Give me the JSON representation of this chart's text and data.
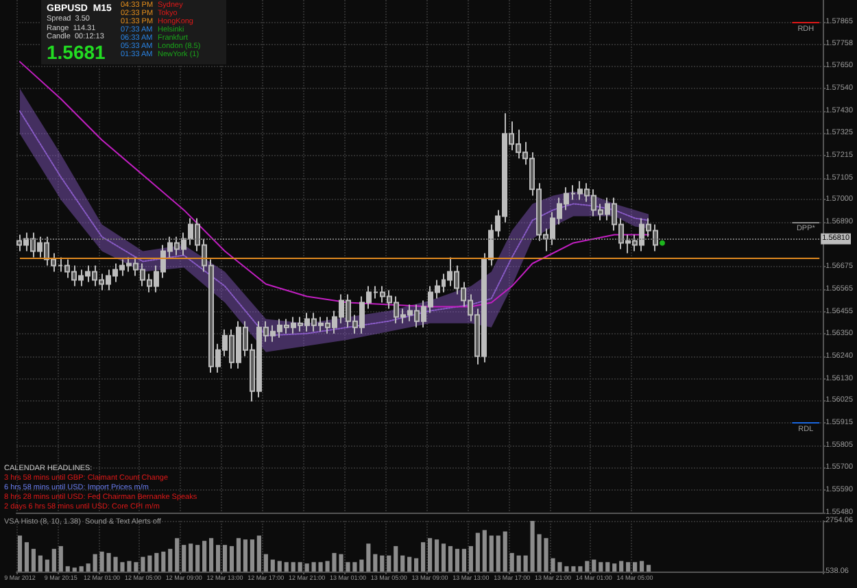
{
  "chart_data": [
    {
      "type": "candlestick",
      "title": "GBPUSD  M15",
      "annotations": [
        "Spread  3.50",
        "Range  114.31",
        "Candle  00:12:13",
        "1.5681",
        "04:33 PM",
        "02:33 PM",
        "01:33 PM",
        "07:33 AM",
        "06:33 AM",
        "05:33 AM",
        "01:33 AM",
        "Sydney",
        "Tokyo",
        "HongKong",
        "Helsinki",
        "Frankfurt",
        "London (8.5)",
        "NewYork (1)",
        "CALENDAR HEADLINES:",
        "3 hrs 58 mins until GBP: Claimant Count Change",
        "6 hrs 58 mins until USD: Import Prices m/m",
        "8 hrs 28 mins until USD: Fed Chairman Bernanke Speaks",
        "2 days 6 hrs 58 mins until USD: Core CPI m/m"
      ],
      "categories": [
        null,
        null,
        null,
        null,
        null,
        null,
        null,
        null,
        null,
        null,
        null,
        null,
        null,
        null,
        null,
        null,
        null,
        null,
        null,
        null,
        null,
        null,
        null,
        null,
        null,
        null,
        null,
        null,
        null,
        null,
        null,
        null,
        null,
        null,
        null,
        null,
        null,
        null,
        null,
        null,
        null,
        null,
        null,
        null,
        null,
        null,
        null,
        null,
        null,
        null,
        null,
        null,
        null,
        null,
        null,
        null,
        null,
        null,
        null,
        null,
        null,
        null,
        null,
        null,
        null,
        null,
        null,
        null,
        null,
        null,
        null,
        null,
        null,
        null,
        null,
        null,
        null,
        null,
        null,
        null,
        null,
        null,
        null,
        null,
        null,
        null,
        null,
        null,
        null,
        null,
        null,
        null,
        null,
        null,
        null,
        null,
        null,
        null,
        null,
        null,
        null,
        null,
        null,
        null,
        null,
        null,
        null,
        null,
        null,
        null,
        null,
        null,
        null,
        null,
        null,
        null,
        null,
        null
      ],
      "color": "#bdbdbd",
      "ohlc": [
        [
          1.568,
          1.5683,
          1.5675,
          1.5678
        ],
        [
          1.5678,
          1.5684,
          1.5675,
          1.5681
        ],
        [
          1.5681,
          1.5684,
          1.5672,
          1.5675
        ],
        [
          1.5675,
          1.5682,
          1.5672,
          1.5679
        ],
        [
          1.5679,
          1.5682,
          1.5668,
          1.5671
        ],
        [
          1.5671,
          1.5674,
          1.5665,
          1.5668
        ],
        [
          1.5668,
          1.5672,
          1.5665,
          1.5668
        ],
        [
          1.5668,
          1.5671,
          1.5662,
          1.5665
        ],
        [
          1.5665,
          1.5668,
          1.5658,
          1.5661
        ],
        [
          1.5661,
          1.5666,
          1.5658,
          1.5663
        ],
        [
          1.5663,
          1.5668,
          1.566,
          1.5665
        ],
        [
          1.5665,
          1.5668,
          1.5658,
          1.5661
        ],
        [
          1.5661,
          1.5664,
          1.5656,
          1.5659
        ],
        [
          1.5659,
          1.5666,
          1.5656,
          1.5663
        ],
        [
          1.5663,
          1.5669,
          1.566,
          1.5666
        ],
        [
          1.5666,
          1.5671,
          1.5663,
          1.5668
        ],
        [
          1.5668,
          1.5672,
          1.5665,
          1.5669
        ],
        [
          1.5669,
          1.5672,
          1.5663,
          1.5666
        ],
        [
          1.5666,
          1.5669,
          1.5658,
          1.5661
        ],
        [
          1.5661,
          1.5664,
          1.5655,
          1.5658
        ],
        [
          1.5658,
          1.5668,
          1.5655,
          1.5665
        ],
        [
          1.5665,
          1.5678,
          1.5662,
          1.5675
        ],
        [
          1.5675,
          1.5682,
          1.5672,
          1.5679
        ],
        [
          1.5679,
          1.5682,
          1.5673,
          1.5676
        ],
        [
          1.5676,
          1.5684,
          1.5673,
          1.5681
        ],
        [
          1.5681,
          1.5691,
          1.5678,
          1.5688
        ],
        [
          1.5688,
          1.5691,
          1.5675,
          1.5678
        ],
        [
          1.5678,
          1.5681,
          1.5665,
          1.5668
        ],
        [
          1.5668,
          1.5671,
          1.5616,
          1.5619
        ],
        [
          1.5619,
          1.563,
          1.5616,
          1.5627
        ],
        [
          1.5627,
          1.5637,
          1.5624,
          1.5634
        ],
        [
          1.5634,
          1.5637,
          1.5618,
          1.5621
        ],
        [
          1.5621,
          1.5641,
          1.5618,
          1.5638
        ],
        [
          1.5638,
          1.5641,
          1.5624,
          1.5627
        ],
        [
          1.5627,
          1.563,
          1.5602,
          1.5607
        ],
        [
          1.5607,
          1.5641,
          1.5604,
          1.5638
        ],
        [
          1.5638,
          1.5641,
          1.5631,
          1.5634
        ],
        [
          1.5634,
          1.5639,
          1.5631,
          1.5636
        ],
        [
          1.5636,
          1.5642,
          1.5633,
          1.5639
        ],
        [
          1.5639,
          1.5642,
          1.5635,
          1.5638
        ],
        [
          1.5638,
          1.5643,
          1.5635,
          1.564
        ],
        [
          1.564,
          1.5643,
          1.5636,
          1.5639
        ],
        [
          1.5639,
          1.5645,
          1.5636,
          1.5642
        ],
        [
          1.5642,
          1.5645,
          1.5636,
          1.5639
        ],
        [
          1.5639,
          1.5643,
          1.5636,
          1.564
        ],
        [
          1.564,
          1.5643,
          1.5635,
          1.5638
        ],
        [
          1.5638,
          1.5646,
          1.5635,
          1.5643
        ],
        [
          1.5643,
          1.5654,
          1.564,
          1.5651
        ],
        [
          1.5651,
          1.5654,
          1.5638,
          1.5641
        ],
        [
          1.5641,
          1.5644,
          1.5635,
          1.5638
        ],
        [
          1.5638,
          1.5653,
          1.5635,
          1.565
        ],
        [
          1.565,
          1.5658,
          1.5647,
          1.5655
        ],
        [
          1.5655,
          1.5658,
          1.5652,
          1.5655
        ],
        [
          1.5655,
          1.5658,
          1.565,
          1.5653
        ],
        [
          1.5653,
          1.5656,
          1.5647,
          1.565
        ],
        [
          1.565,
          1.5653,
          1.564,
          1.5643
        ],
        [
          1.5643,
          1.5647,
          1.564,
          1.5644
        ],
        [
          1.5644,
          1.5649,
          1.5641,
          1.5646
        ],
        [
          1.5646,
          1.5649,
          1.5638,
          1.5641
        ],
        [
          1.5641,
          1.5651,
          1.5638,
          1.5648
        ],
        [
          1.5648,
          1.5658,
          1.5645,
          1.5655
        ],
        [
          1.5655,
          1.5661,
          1.5652,
          1.5658
        ],
        [
          1.5658,
          1.5664,
          1.5655,
          1.5661
        ],
        [
          1.5661,
          1.5672,
          1.5658,
          1.5665
        ],
        [
          1.5665,
          1.5668,
          1.5654,
          1.5657
        ],
        [
          1.5657,
          1.566,
          1.5648,
          1.5651
        ],
        [
          1.5651,
          1.5654,
          1.5641,
          1.5644
        ],
        [
          1.5644,
          1.5647,
          1.562,
          1.5624
        ],
        [
          1.5624,
          1.5674,
          1.5621,
          1.5671
        ],
        [
          1.5671,
          1.5688,
          1.5668,
          1.5685
        ],
        [
          1.5685,
          1.5695,
          1.5682,
          1.5692
        ],
        [
          1.5692,
          1.5742,
          1.5689,
          1.5732
        ],
        [
          1.5732,
          1.5738,
          1.5724,
          1.5727
        ],
        [
          1.5727,
          1.5734,
          1.572,
          1.5723
        ],
        [
          1.5723,
          1.5728,
          1.5717,
          1.572
        ],
        [
          1.572,
          1.5723,
          1.5702,
          1.5705
        ],
        [
          1.5705,
          1.5708,
          1.568,
          1.5683
        ],
        [
          1.5683,
          1.5686,
          1.5675,
          1.5681
        ],
        [
          1.5681,
          1.5694,
          1.5678,
          1.5691
        ],
        [
          1.5691,
          1.5701,
          1.5688,
          1.5698
        ],
        [
          1.5698,
          1.5706,
          1.5695,
          1.5703
        ],
        [
          1.5703,
          1.5707,
          1.57,
          1.5703
        ],
        [
          1.5703,
          1.5709,
          1.57,
          1.5705
        ],
        [
          1.5705,
          1.5708,
          1.5699,
          1.5702
        ],
        [
          1.5702,
          1.5705,
          1.5692,
          1.5695
        ],
        [
          1.5695,
          1.5698,
          1.569,
          1.5693
        ],
        [
          1.5693,
          1.5701,
          1.569,
          1.5698
        ],
        [
          1.5698,
          1.5701,
          1.5685,
          1.5688
        ],
        [
          1.5688,
          1.5691,
          1.5676,
          1.5679
        ],
        [
          1.5679,
          1.5683,
          1.5674,
          1.568
        ],
        [
          1.568,
          1.5683,
          1.5675,
          1.5678
        ],
        [
          1.5678,
          1.5691,
          1.5675,
          1.5688
        ],
        [
          1.5688,
          1.5691,
          1.5682,
          1.5685
        ],
        [
          1.5685,
          1.5688,
          1.5675,
          1.5678
        ],
        null,
        null,
        null,
        null,
        null,
        null,
        null,
        null,
        null,
        null,
        null,
        null,
        null,
        null,
        null,
        null,
        null,
        null,
        null,
        null,
        null,
        null,
        null,
        null
      ],
      "series": [
        {
          "type": "line",
          "color": "#8a5cc8",
          "line_style": "dotted",
          "marker": "none",
          "values": [
            1.5743,
            null,
            null,
            null,
            null,
            null,
            1.5711,
            null,
            null,
            null,
            null,
            null,
            1.5682,
            null,
            null,
            null,
            null,
            null,
            1.567,
            null,
            null,
            null,
            null,
            null,
            1.5673,
            null,
            null,
            null,
            null,
            null,
            1.5658,
            null,
            null,
            null,
            null,
            null,
            1.5634,
            null,
            null,
            null,
            null,
            null,
            1.5635,
            null,
            null,
            null,
            null,
            null,
            1.5638,
            null,
            null,
            null,
            null,
            null,
            1.5641,
            null,
            null,
            null,
            null,
            null,
            1.5646,
            null,
            null,
            null,
            null,
            null,
            1.5649,
            null,
            null,
            1.5652,
            null,
            null,
            1.5672,
            null,
            null,
            1.569,
            null,
            null,
            1.5695,
            null,
            null,
            1.5698,
            null,
            null,
            1.5697,
            null,
            null,
            1.5695,
            null,
            null,
            1.5691,
            null,
            1.569,
            null,
            null,
            null,
            null,
            null,
            null,
            null,
            null,
            null,
            null,
            null,
            null,
            null,
            null,
            null,
            null,
            null,
            null,
            null,
            null,
            null,
            null,
            null,
            null,
            null
          ],
          "upper": [
            1.5754,
            null,
            null,
            null,
            null,
            null,
            1.5722,
            null,
            null,
            null,
            null,
            null,
            1.5688,
            null,
            null,
            null,
            null,
            null,
            1.5675,
            null,
            null,
            null,
            null,
            null,
            1.5678,
            null,
            null,
            null,
            null,
            null,
            1.5665,
            null,
            null,
            null,
            null,
            null,
            1.5642,
            null,
            null,
            null,
            null,
            null,
            1.564,
            null,
            null,
            null,
            null,
            null,
            1.5643,
            null,
            null,
            null,
            null,
            null,
            1.5646,
            null,
            null,
            null,
            null,
            null,
            1.5651,
            null,
            null,
            null,
            null,
            null,
            1.5658,
            null,
            null,
            1.5665,
            null,
            null,
            1.5685,
            null,
            null,
            1.5698,
            null,
            null,
            1.5702,
            null,
            null,
            1.5704,
            null,
            null,
            1.5702,
            null,
            null,
            1.5698,
            null,
            null,
            1.5695,
            null,
            1.5693,
            null,
            null,
            null,
            null,
            null,
            null,
            null,
            null,
            null,
            null,
            null,
            null,
            null,
            null,
            null,
            null,
            null,
            null,
            null,
            null,
            null,
            null,
            null,
            null,
            null
          ],
          "lower": [
            1.5732,
            null,
            null,
            null,
            null,
            null,
            1.57,
            null,
            null,
            null,
            null,
            null,
            1.5675,
            null,
            null,
            null,
            null,
            null,
            1.5665,
            null,
            null,
            null,
            null,
            null,
            1.5667,
            null,
            null,
            null,
            null,
            null,
            1.565,
            null,
            null,
            null,
            null,
            null,
            1.5626,
            null,
            null,
            null,
            null,
            null,
            1.5629,
            null,
            null,
            null,
            null,
            null,
            1.5632,
            null,
            null,
            null,
            null,
            null,
            1.5636,
            null,
            null,
            null,
            null,
            null,
            1.564,
            null,
            null,
            null,
            null,
            null,
            1.564,
            null,
            null,
            1.5638,
            null,
            null,
            1.5658,
            null,
            null,
            1.5681,
            null,
            null,
            1.5687,
            null,
            null,
            1.5692,
            null,
            null,
            1.5692,
            null,
            null,
            1.5692,
            null,
            null,
            1.5687,
            null,
            1.5686,
            null,
            null,
            null,
            null,
            null,
            null,
            null,
            null,
            null,
            null,
            null,
            null,
            null,
            null,
            null,
            null,
            null,
            null,
            null,
            null,
            null,
            null,
            null,
            null,
            null
          ]
        },
        {
          "type": "line",
          "color": "#c21fc2",
          "line_style": "solid",
          "marker": "none",
          "values": [
            1.5767,
            null,
            null,
            null,
            null,
            null,
            1.5749,
            null,
            null,
            null,
            null,
            null,
            1.5729,
            null,
            null,
            null,
            null,
            null,
            1.5712,
            null,
            null,
            null,
            null,
            null,
            1.5695,
            null,
            null,
            null,
            null,
            null,
            1.5675,
            null,
            null,
            null,
            null,
            null,
            1.5659,
            null,
            null,
            null,
            null,
            null,
            1.5653,
            null,
            null,
            null,
            null,
            null,
            1.565,
            null,
            null,
            null,
            null,
            null,
            1.5649,
            null,
            null,
            null,
            null,
            null,
            1.5648,
            null,
            null,
            null,
            null,
            null,
            1.5648,
            null,
            null,
            1.565,
            null,
            null,
            1.5658,
            null,
            null,
            1.5669,
            null,
            null,
            1.5674,
            null,
            null,
            1.5679,
            null,
            null,
            1.5681,
            null,
            null,
            1.5683,
            null,
            null,
            1.5683,
            null,
            1.5683,
            null,
            null,
            null,
            null,
            null,
            null,
            null,
            null,
            null,
            null,
            null,
            null,
            null,
            null,
            null,
            null,
            null,
            null,
            null,
            null,
            null,
            null,
            null,
            null,
            null
          ]
        },
        {
          "type": "scatter",
          "color": "#22e022",
          "marker": "circle",
          "values": [
            null,
            null,
            null,
            null,
            null,
            null,
            null,
            null,
            null,
            null,
            null,
            null,
            null,
            null,
            null,
            null,
            null,
            null,
            null,
            null,
            null,
            null,
            null,
            null,
            null,
            null,
            null,
            null,
            null,
            null,
            null,
            null,
            null,
            null,
            null,
            null,
            null,
            null,
            null,
            null,
            null,
            null,
            null,
            null,
            null,
            null,
            null,
            null,
            null,
            null,
            null,
            null,
            null,
            null,
            null,
            null,
            null,
            null,
            null,
            null,
            null,
            null,
            null,
            null,
            null,
            null,
            null,
            null,
            null,
            null,
            null,
            null,
            null,
            null,
            null,
            null,
            null,
            null,
            null,
            null,
            null,
            null,
            null,
            null,
            null,
            null,
            null,
            null,
            null,
            null,
            null,
            null,
            null,
            null,
            1.5679,
            null,
            null,
            null,
            null,
            null,
            null,
            null,
            null,
            null,
            null,
            null,
            null,
            null,
            null,
            null,
            null,
            null,
            null,
            null,
            null,
            null,
            null,
            null
          ]
        }
      ],
      "ylim": [
        1.5548,
        1.5797
      ],
      "yticks": [
        1.57865,
        1.57758,
        {
          "value": 1.5765,
          "label": "1.57650"
        },
        {
          "value": 1.5754,
          "label": "1.57540"
        },
        {
          "value": 1.5743,
          "label": "1.57430"
        },
        1.57325,
        1.57215,
        1.57105,
        {
          "value": 1.57,
          "label": "1.57000"
        },
        {
          "value": 1.5689,
          "label": "1.56890"
        },
        1.56675,
        1.56565,
        1.56455,
        {
          "value": 1.5635,
          "label": "1.56350"
        },
        {
          "value": 1.5624,
          "label": "1.56240"
        },
        {
          "value": 1.5613,
          "label": "1.56130"
        },
        1.56025,
        1.55915,
        1.55805,
        {
          "value": 1.557,
          "label": "1.55700"
        },
        {
          "value": 1.5559,
          "label": "1.55590"
        },
        {
          "value": 1.5548,
          "label": "1.55480"
        }
      ],
      "ref_lines": [
        {
          "axis": "y",
          "value": 1.5786,
          "label": "RDH",
          "color": "#e01818"
        },
        {
          "axis": "y",
          "value": 1.5689,
          "label": "DPP*",
          "color": "#8a8a8a"
        },
        {
          "axis": "y",
          "value": 1.55915,
          "label": "RDL",
          "color": "#1a66e0"
        },
        {
          "axis": "y",
          "value": 1.5672,
          "color": "#e08a20"
        },
        {
          "axis": "y",
          "value": 1.5681,
          "label": "1.56810",
          "color": "#777777",
          "line_style": "dotted"
        }
      ],
      "grid": true,
      "tick_labels": "y"
    },
    {
      "type": "bar",
      "title": "VSA Histo (8, 10, 1.38)  Sound & Text Alerts off",
      "categories": [
        "9 Mar 2012",
        null,
        null,
        null,
        null,
        null,
        "9 Mar 20:15",
        null,
        null,
        null,
        null,
        null,
        "12 Mar 01:00",
        null,
        null,
        null,
        null,
        null,
        "12 Mar 05:00",
        null,
        null,
        null,
        null,
        null,
        "12 Mar 09:00",
        null,
        null,
        null,
        null,
        null,
        "12 Mar 13:00",
        null,
        null,
        null,
        null,
        null,
        "12 Mar 17:00",
        null,
        null,
        null,
        null,
        null,
        "12 Mar 21:00",
        null,
        null,
        null,
        null,
        null,
        "13 Mar 01:00",
        null,
        null,
        null,
        null,
        null,
        "13 Mar 05:00",
        null,
        null,
        null,
        null,
        null,
        "13 Mar 09:00",
        null,
        null,
        null,
        null,
        null,
        "13 Mar 13:00",
        null,
        null,
        null,
        null,
        null,
        "13 Mar 17:00",
        null,
        null,
        null,
        null,
        null,
        "13 Mar 21:00",
        null,
        null,
        null,
        null,
        null,
        "14 Mar 01:00",
        null,
        null,
        null,
        null,
        null,
        "14 Mar 05:00",
        null,
        null,
        null,
        null,
        null,
        null,
        null,
        null,
        null,
        null,
        null,
        null,
        null,
        null,
        null,
        null,
        null,
        null,
        null,
        null,
        null,
        null,
        null,
        null,
        null,
        null,
        null
      ],
      "color": "#8c8c8c",
      "values": [
        2110,
        1820,
        1530,
        1240,
        1060,
        1530,
        1650,
        770,
        710,
        770,
        890,
        1300,
        1410,
        1350,
        1180,
        950,
        1000,
        950,
        1180,
        1240,
        1350,
        1410,
        1530,
        2000,
        1700,
        1760,
        1700,
        1880,
        2000,
        1700,
        1700,
        1650,
        2000,
        1940,
        1940,
        2110,
        1300,
        1060,
        1000,
        950,
        950,
        950,
        890,
        950,
        950,
        1000,
        1350,
        1300,
        950,
        950,
        1060,
        1760,
        1300,
        1240,
        1240,
        1650,
        1240,
        1180,
        1120,
        1820,
        2000,
        1940,
        1760,
        1650,
        1530,
        1530,
        1650,
        2230,
        2350,
        2110,
        2110,
        2290,
        1350,
        1240,
        1240,
        2750,
        2170,
        2000,
        1120,
        950,
        770,
        770,
        770,
        1000,
        1060,
        950,
        950,
        890,
        1000,
        950,
        950,
        1000,
        830,
        null,
        null,
        null,
        null,
        null,
        null,
        null,
        null,
        null,
        null,
        null,
        null,
        null,
        null,
        null,
        null,
        null,
        null,
        null,
        null,
        null,
        null,
        null,
        null,
        null
      ],
      "ylim": [
        538.06,
        2754.06
      ],
      "yticks": [
        538.06,
        2754.06
      ],
      "grid": true
    }
  ]
}
